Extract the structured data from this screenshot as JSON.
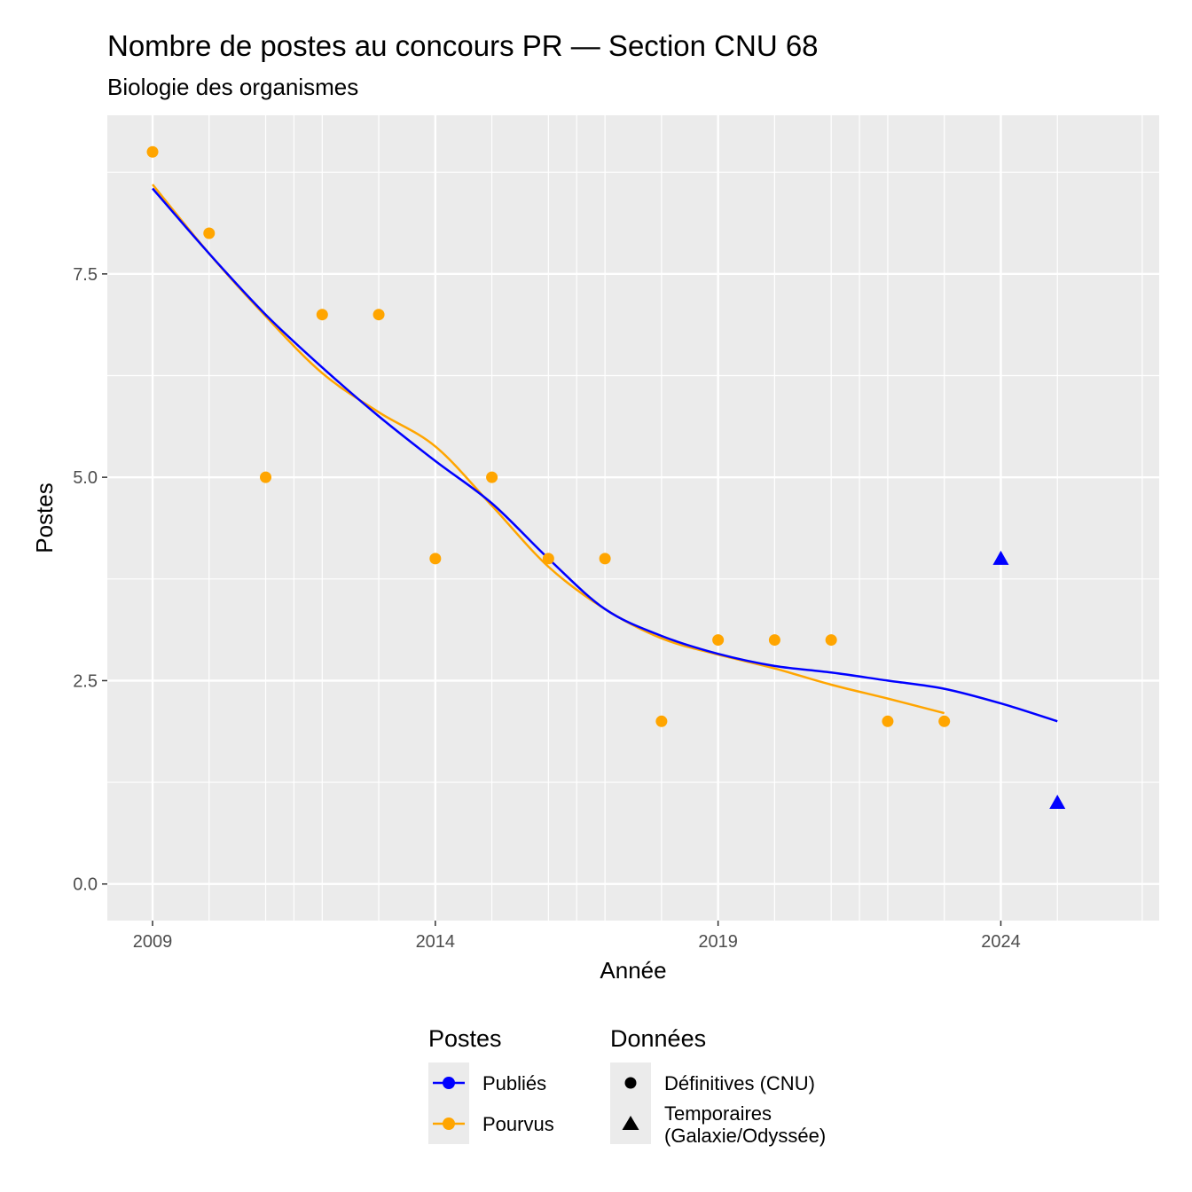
{
  "chart_data": {
    "type": "scatter",
    "title": "Nombre de postes au concours PR  —  Section CNU 68",
    "subtitle": "Biologie des organismes",
    "xlabel": "Année",
    "ylabel": "Postes",
    "xlim": [
      2008.2,
      2026.8
    ],
    "ylim": [
      -0.45,
      9.45
    ],
    "x_ticks": [
      2009,
      2014,
      2019,
      2024
    ],
    "x_tick_labels": [
      "2009",
      "2014",
      "2019",
      "2024"
    ],
    "x_minor": [
      2011.5,
      2016.5,
      2021.5,
      2026.5
    ],
    "y_ticks": [
      0,
      2.5,
      5,
      7.5
    ],
    "y_tick_labels": [
      "0.0",
      "2.5",
      "5.0",
      "7.5"
    ],
    "y_minor": [
      1.25,
      3.75,
      6.25,
      8.75
    ],
    "year_grid": [
      2009,
      2010,
      2011,
      2012,
      2013,
      2014,
      2015,
      2016,
      2017,
      2018,
      2019,
      2020,
      2021,
      2022,
      2023,
      2024,
      2025
    ],
    "grid": true,
    "background": "#ebebeb",
    "series": [
      {
        "name": "Publiés",
        "color": "#0000ff",
        "points_definitive": [],
        "points_temporary": [
          {
            "x": 2024,
            "y": 4
          },
          {
            "x": 2025,
            "y": 1
          }
        ],
        "smooth": [
          {
            "x": 2009,
            "y": 8.55
          },
          {
            "x": 2010,
            "y": 7.75
          },
          {
            "x": 2011,
            "y": 7.0
          },
          {
            "x": 2012,
            "y": 6.35
          },
          {
            "x": 2013,
            "y": 5.75
          },
          {
            "x": 2014,
            "y": 5.2
          },
          {
            "x": 2015,
            "y": 4.68
          },
          {
            "x": 2016,
            "y": 4.0
          },
          {
            "x": 2017,
            "y": 3.38
          },
          {
            "x": 2018,
            "y": 3.05
          },
          {
            "x": 2019,
            "y": 2.83
          },
          {
            "x": 2020,
            "y": 2.68
          },
          {
            "x": 2021,
            "y": 2.6
          },
          {
            "x": 2022,
            "y": 2.5
          },
          {
            "x": 2023,
            "y": 2.4
          },
          {
            "x": 2024,
            "y": 2.22
          },
          {
            "x": 2025,
            "y": 2.0
          }
        ]
      },
      {
        "name": "Pourvus",
        "color": "#ffa500",
        "points_definitive": [
          {
            "x": 2009,
            "y": 9
          },
          {
            "x": 2010,
            "y": 8
          },
          {
            "x": 2011,
            "y": 5
          },
          {
            "x": 2012,
            "y": 7
          },
          {
            "x": 2013,
            "y": 7
          },
          {
            "x": 2014,
            "y": 4
          },
          {
            "x": 2015,
            "y": 5
          },
          {
            "x": 2016,
            "y": 4
          },
          {
            "x": 2017,
            "y": 4
          },
          {
            "x": 2018,
            "y": 2
          },
          {
            "x": 2019,
            "y": 3
          },
          {
            "x": 2020,
            "y": 3
          },
          {
            "x": 2021,
            "y": 3
          },
          {
            "x": 2022,
            "y": 2
          },
          {
            "x": 2023,
            "y": 2
          }
        ],
        "points_temporary": [],
        "smooth": [
          {
            "x": 2009,
            "y": 8.6
          },
          {
            "x": 2010,
            "y": 7.75
          },
          {
            "x": 2011,
            "y": 6.98
          },
          {
            "x": 2012,
            "y": 6.28
          },
          {
            "x": 2013,
            "y": 5.8
          },
          {
            "x": 2014,
            "y": 5.38
          },
          {
            "x": 2015,
            "y": 4.65
          },
          {
            "x": 2016,
            "y": 3.9
          },
          {
            "x": 2017,
            "y": 3.38
          },
          {
            "x": 2018,
            "y": 3.02
          },
          {
            "x": 2019,
            "y": 2.82
          },
          {
            "x": 2020,
            "y": 2.65
          },
          {
            "x": 2021,
            "y": 2.45
          },
          {
            "x": 2022,
            "y": 2.28
          },
          {
            "x": 2023,
            "y": 2.1
          }
        ]
      }
    ],
    "legend": {
      "placement": "bottom",
      "groups": [
        {
          "title": "Postes",
          "entries": [
            "Publiés",
            "Pourvus"
          ]
        },
        {
          "title": "Données",
          "entries": [
            "Définitives (CNU)",
            "Temporaires",
            "(Galaxie/Odyssée)"
          ]
        }
      ]
    }
  }
}
